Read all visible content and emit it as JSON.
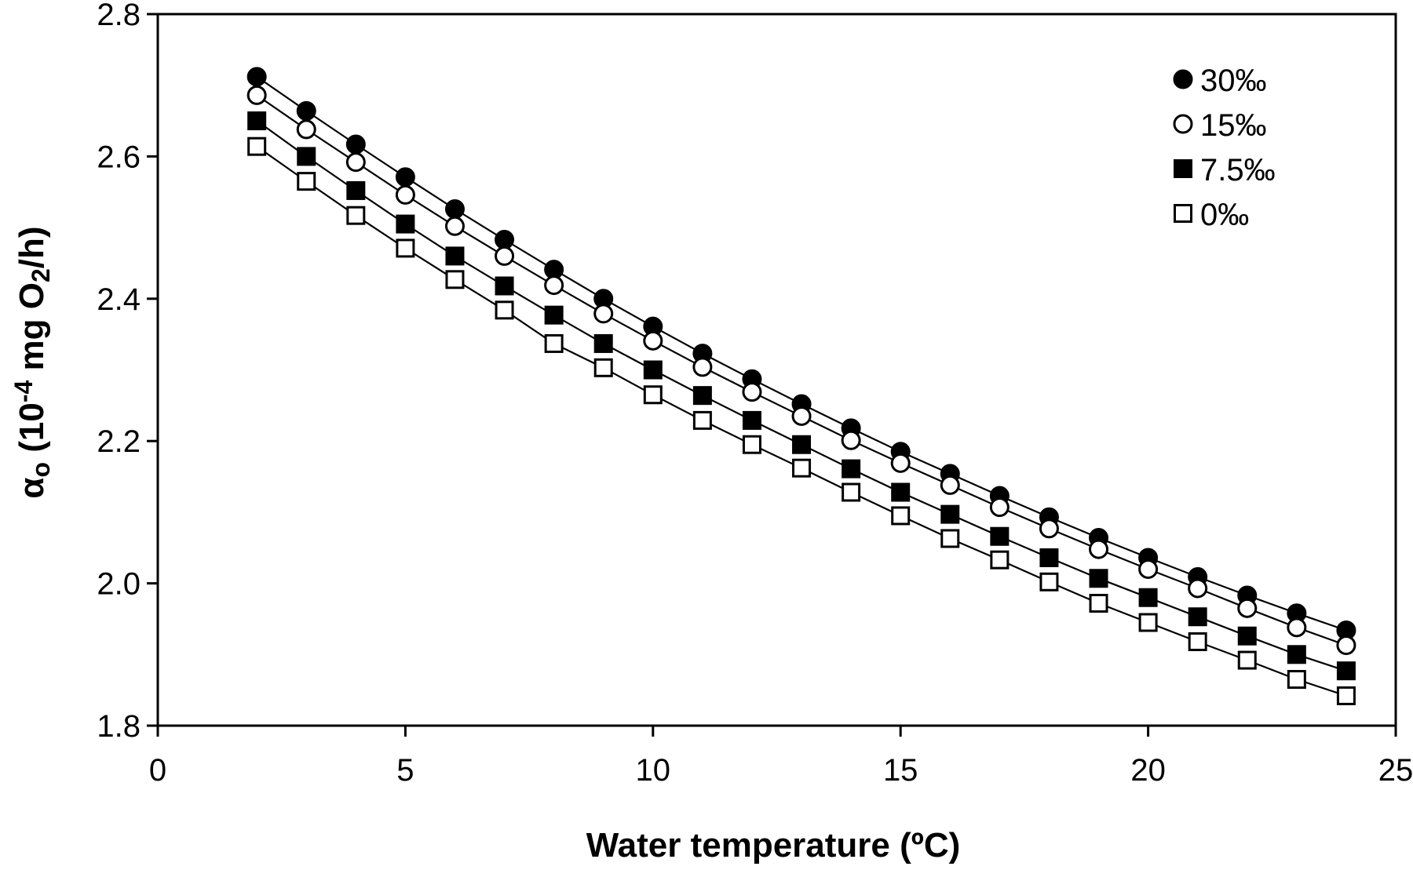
{
  "chart_data": {
    "type": "scatter",
    "title": "",
    "xlabel": "Water temperature (ºC)",
    "ylabel": {
      "text_main": "α",
      "text_sub": "o",
      "text_mid": " (10",
      "text_sup": "-4",
      "text_units": " mg O",
      "text_sub2": "2",
      "text_end": "/h)"
    },
    "xlim": [
      0,
      25
    ],
    "ylim": [
      1.8,
      2.8
    ],
    "xticks": [
      "0",
      "5",
      "10",
      "15",
      "20",
      "25"
    ],
    "yticks": [
      "1.8",
      "2.0",
      "2.2",
      "2.4",
      "2.6",
      "2.8"
    ],
    "grid": false,
    "legend_position": "top-right",
    "x": [
      2,
      3,
      4,
      5,
      6,
      7,
      8,
      9,
      10,
      11,
      12,
      13,
      14,
      15,
      16,
      17,
      18,
      19,
      20,
      21,
      22,
      23,
      24
    ],
    "series": [
      {
        "name": "30‰",
        "marker": "filled-circle",
        "values": [
          2.712,
          2.664,
          2.617,
          2.571,
          2.526,
          2.483,
          2.441,
          2.4,
          2.361,
          2.323,
          2.287,
          2.252,
          2.218,
          2.185,
          2.154,
          2.123,
          2.093,
          2.064,
          2.036,
          2.009,
          1.983,
          1.958,
          1.934
        ]
      },
      {
        "name": "15‰",
        "marker": "open-circle",
        "values": [
          2.686,
          2.638,
          2.592,
          2.546,
          2.502,
          2.46,
          2.419,
          2.379,
          2.341,
          2.304,
          2.269,
          2.235,
          2.201,
          2.169,
          2.138,
          2.107,
          2.077,
          2.048,
          2.02,
          1.993,
          1.965,
          1.938,
          1.913
        ]
      },
      {
        "name": "7.5‰",
        "marker": "filled-square",
        "values": [
          2.65,
          2.6,
          2.552,
          2.505,
          2.46,
          2.418,
          2.377,
          2.337,
          2.3,
          2.264,
          2.229,
          2.195,
          2.161,
          2.128,
          2.097,
          2.066,
          2.036,
          2.007,
          1.98,
          1.953,
          1.926,
          1.9,
          1.877
        ]
      },
      {
        "name": "0‰",
        "marker": "open-square",
        "values": [
          2.614,
          2.565,
          2.517,
          2.471,
          2.427,
          2.384,
          2.337,
          2.303,
          2.265,
          2.229,
          2.195,
          2.162,
          2.128,
          2.095,
          2.063,
          2.033,
          2.002,
          1.972,
          1.945,
          1.918,
          1.892,
          1.865,
          1.842
        ]
      }
    ]
  }
}
